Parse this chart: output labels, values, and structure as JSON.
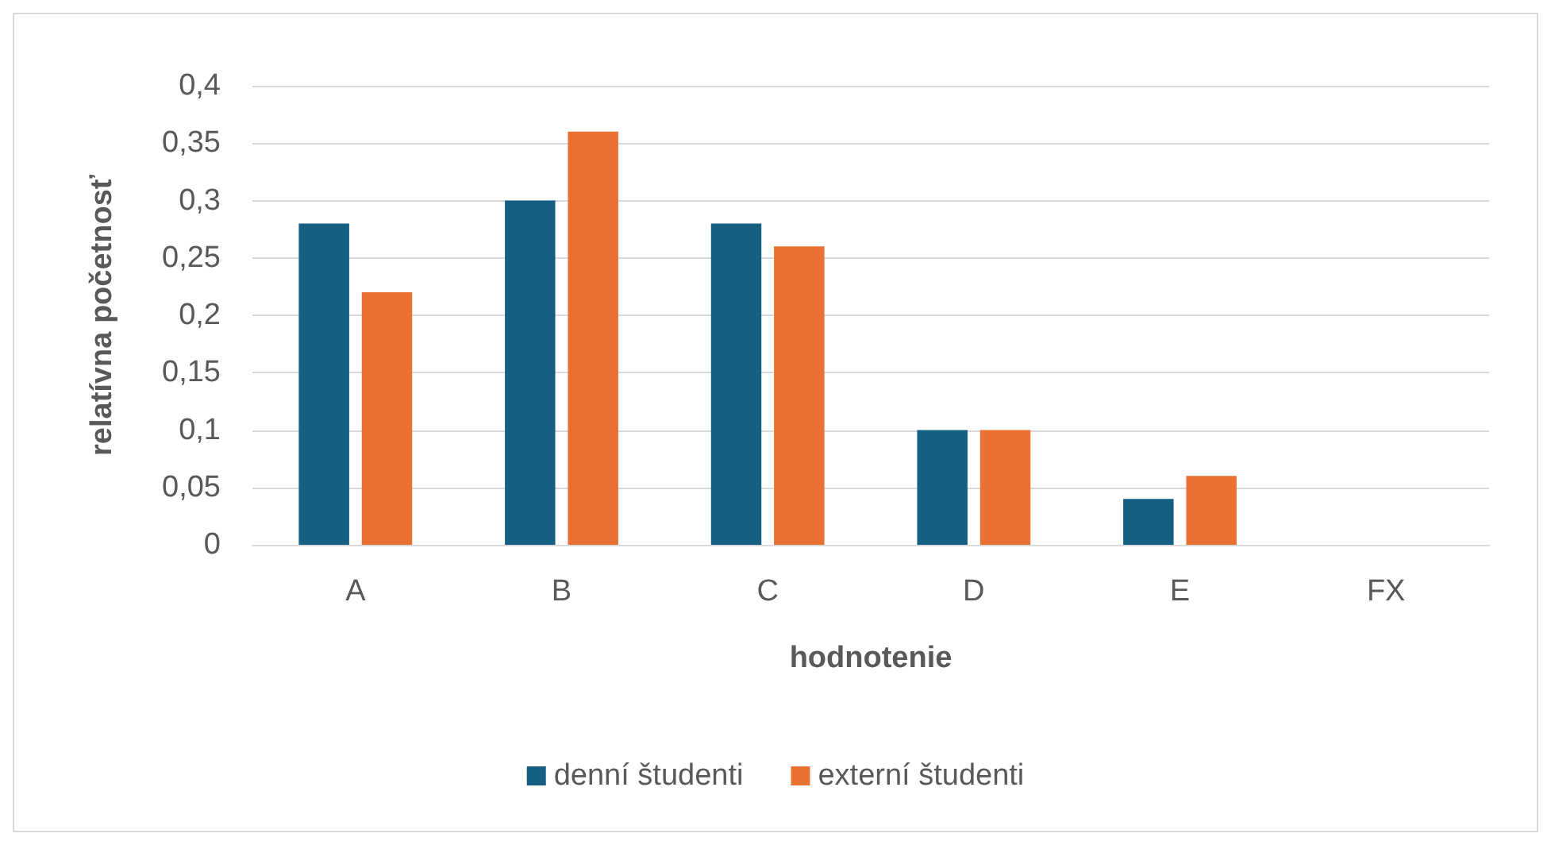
{
  "chart_data": {
    "type": "bar",
    "xlabel": "hodnotenie",
    "ylabel": "relatívna početnosť",
    "categories": [
      "A",
      "B",
      "C",
      "D",
      "E",
      "FX"
    ],
    "series": [
      {
        "name": "denní študenti",
        "color": "#156082",
        "values": [
          0.28,
          0.3,
          0.28,
          0.1,
          0.04,
          0
        ]
      },
      {
        "name": "externí študenti",
        "color": "#e97132",
        "values": [
          0.22,
          0.36,
          0.26,
          0.1,
          0.06,
          0
        ]
      }
    ],
    "ylim": [
      0,
      0.4
    ],
    "yticks": [
      {
        "value": 0,
        "label": "0"
      },
      {
        "value": 0.05,
        "label": "0,05"
      },
      {
        "value": 0.1,
        "label": "0,1"
      },
      {
        "value": 0.15,
        "label": "0,15"
      },
      {
        "value": 0.2,
        "label": "0,2"
      },
      {
        "value": 0.25,
        "label": "0,25"
      },
      {
        "value": 0.3,
        "label": "0,3"
      },
      {
        "value": 0.35,
        "label": "0,35"
      },
      {
        "value": 0.4,
        "label": "0,4"
      }
    ],
    "grid": "y",
    "legend": "bottom"
  }
}
